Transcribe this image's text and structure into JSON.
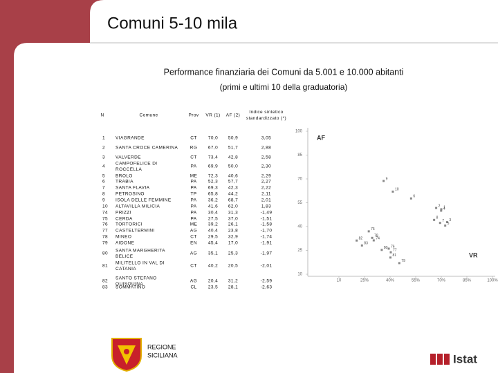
{
  "header": {
    "title": "Comuni 5-10 mila"
  },
  "subtitle": [
    "Performance finanziaria dei Comuni da 5.001 e 10.000 abitanti",
    "(primi e ultimi 10 della graduatoria)"
  ],
  "table": {
    "columns": [
      [
        "N"
      ],
      [
        "Comune"
      ],
      [
        "Prov"
      ],
      [
        "VR (1)"
      ],
      [
        "AF (2)"
      ],
      [
        "Indice sintetico",
        "standardizzato (*)"
      ]
    ],
    "rows": [
      [
        "1",
        [
          "VIAGRANDE"
        ],
        "CT",
        "70,0",
        "50,9",
        "3,05"
      ],
      [
        "2",
        [
          "SANTA CROCE CAMERINA"
        ],
        "RG",
        "67,0",
        "51,7",
        "2,88"
      ],
      [
        "3",
        [
          "VALVERDE"
        ],
        "CT",
        "73,4",
        "42,8",
        "2,58"
      ],
      [
        "4",
        [
          "CAMPOFELICE DI",
          "ROCCELLA"
        ],
        "PA",
        "69,9",
        "50,0",
        "2,30"
      ],
      [
        "5",
        [
          "BROLO"
        ],
        "ME",
        "72,3",
        "40,6",
        "2,29"
      ],
      [
        "6",
        [
          "TRABIA"
        ],
        "PA",
        "52,3",
        "57,7",
        "2,27"
      ],
      [
        "7",
        [
          "SANTA FLAVIA"
        ],
        "PA",
        "69,3",
        "42,3",
        "2,22"
      ],
      [
        "8",
        [
          "PETROSINO"
        ],
        "TP",
        "65,8",
        "44,2",
        "2,11"
      ],
      [
        "9",
        [
          "ISOLA DELLE FEMMINE"
        ],
        "PA",
        "36,2",
        "68,7",
        "2,01"
      ],
      [
        "10",
        [
          "ALTAVILLA MILICIA"
        ],
        "PA",
        "41,6",
        "62,0",
        "1,83"
      ],
      [
        "74",
        [
          "PRIZZI"
        ],
        "PA",
        "30,4",
        "31,3",
        "-1,49"
      ],
      [
        "75",
        [
          "CERDA"
        ],
        "PA",
        "27,5",
        "37,0",
        "-1,51"
      ],
      [
        "76",
        [
          "TORTORICI"
        ],
        "ME",
        "39,2",
        "26,1",
        "-1,58"
      ],
      [
        "77",
        [
          "CASTELTERMINI"
        ],
        "AG",
        "40,4",
        "23,8",
        "-1,70"
      ],
      [
        "78",
        [
          "MINEO"
        ],
        "CT",
        "29,5",
        "32,9",
        "-1,74"
      ],
      [
        "79",
        [
          "AIDONE"
        ],
        "EN",
        "45,4",
        "17,0",
        "-1,91"
      ],
      [
        "80",
        [
          "SANTA MARGHERITA",
          "BELICE"
        ],
        "AG",
        "35,1",
        "25,3",
        "-1,97"
      ],
      [
        "81",
        [
          "MILITELLO IN VAL DI",
          "CATANIA"
        ],
        "CT",
        "40,2",
        "20,5",
        "-2,01"
      ],
      [
        "82",
        [
          "SANTO STEFANO",
          "QUISQUINA"
        ],
        "AG",
        "20,4",
        "31,2",
        "-2,59"
      ],
      [
        "83",
        [
          "SOMMATINO"
        ],
        "CL",
        "23,5",
        "28,1",
        "-2,63"
      ]
    ]
  },
  "chart_data": {
    "type": "scatter",
    "ylabel": "AF",
    "xlabel": "VR",
    "xlim": [
      10,
      100
    ],
    "ylim": [
      10,
      100
    ],
    "xticks": [
      10,
      {
        "value": 25,
        "label": "25%"
      },
      {
        "value": 40,
        "label": "40%"
      },
      {
        "value": 55,
        "label": "55%"
      },
      {
        "value": 70,
        "label": "70%"
      },
      {
        "value": 85,
        "label": "85%"
      },
      {
        "value": 100,
        "label": "100%"
      }
    ],
    "yticks": [
      10,
      25,
      40,
      55,
      70,
      85,
      100
    ],
    "series": [
      {
        "color": "#888888",
        "point_labels": [
          "1",
          "2",
          "3",
          "4",
          "5",
          "6",
          "7",
          "8",
          "9",
          "10",
          "74",
          "75",
          "76",
          "77",
          "78",
          "79",
          "80",
          "81",
          "82",
          "83"
        ],
        "x": [
          70.0,
          67.0,
          73.4,
          69.9,
          72.3,
          52.3,
          69.3,
          65.8,
          36.2,
          41.6,
          30.4,
          27.5,
          39.2,
          40.4,
          29.5,
          45.4,
          35.1,
          40.2,
          20.4,
          23.5
        ],
        "values": [
          50.9,
          51.7,
          42.8,
          50.0,
          40.6,
          57.7,
          42.3,
          44.2,
          68.7,
          62.0,
          31.3,
          37.0,
          26.1,
          23.8,
          32.9,
          17.0,
          25.3,
          20.5,
          31.2,
          28.1
        ]
      }
    ]
  },
  "footer": {
    "region": [
      "REGIONE",
      "SICILIANA"
    ],
    "logo": "Istat"
  }
}
